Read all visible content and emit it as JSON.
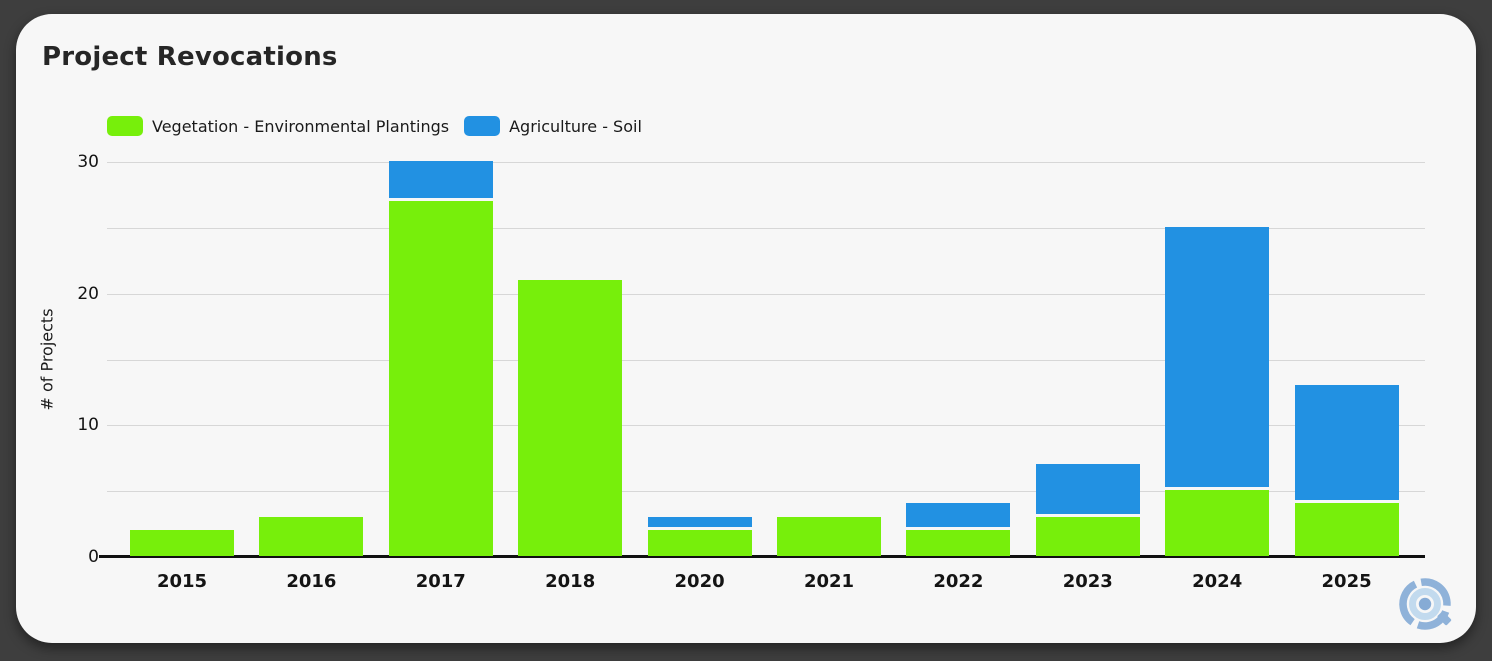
{
  "card_title": "Project Revocations",
  "chart_data": {
    "type": "bar",
    "stacked": true,
    "title": "Project Revocations",
    "xlabel": "",
    "ylabel": "# of Projects",
    "categories": [
      "2015",
      "2016",
      "2017",
      "2018",
      "2020",
      "2021",
      "2022",
      "2023",
      "2024",
      "2025"
    ],
    "series": [
      {
        "name": "Vegetation - Environmental Plantings",
        "color": "#77EF0B",
        "values": [
          2,
          3,
          27,
          21,
          2,
          3,
          2,
          3,
          5,
          4
        ]
      },
      {
        "name": "Agriculture - Soil",
        "color": "#2291E2",
        "values": [
          0,
          0,
          3,
          0,
          1,
          0,
          2,
          4,
          20,
          9
        ]
      }
    ],
    "totals": [
      2,
      3,
      30,
      21,
      3,
      3,
      4,
      7,
      25,
      13
    ],
    "ylim": [
      0,
      30
    ],
    "yticks": [
      0,
      10,
      20,
      30
    ],
    "gridline_step": 5,
    "grid": true,
    "legend_position": "top-left"
  },
  "colors": {
    "page_background": "#3E3E3E",
    "card_background": "#F7F7F7",
    "gridline": "#D7D7D7",
    "axis_line": "#101010",
    "text": "#1A1A1A",
    "logo_outer": "#8FB2D9",
    "logo_inner_ring": "#C2DAEE",
    "logo_dot": "#86ABD5"
  },
  "logo": {
    "name": "circular-q-watermark-logo"
  }
}
